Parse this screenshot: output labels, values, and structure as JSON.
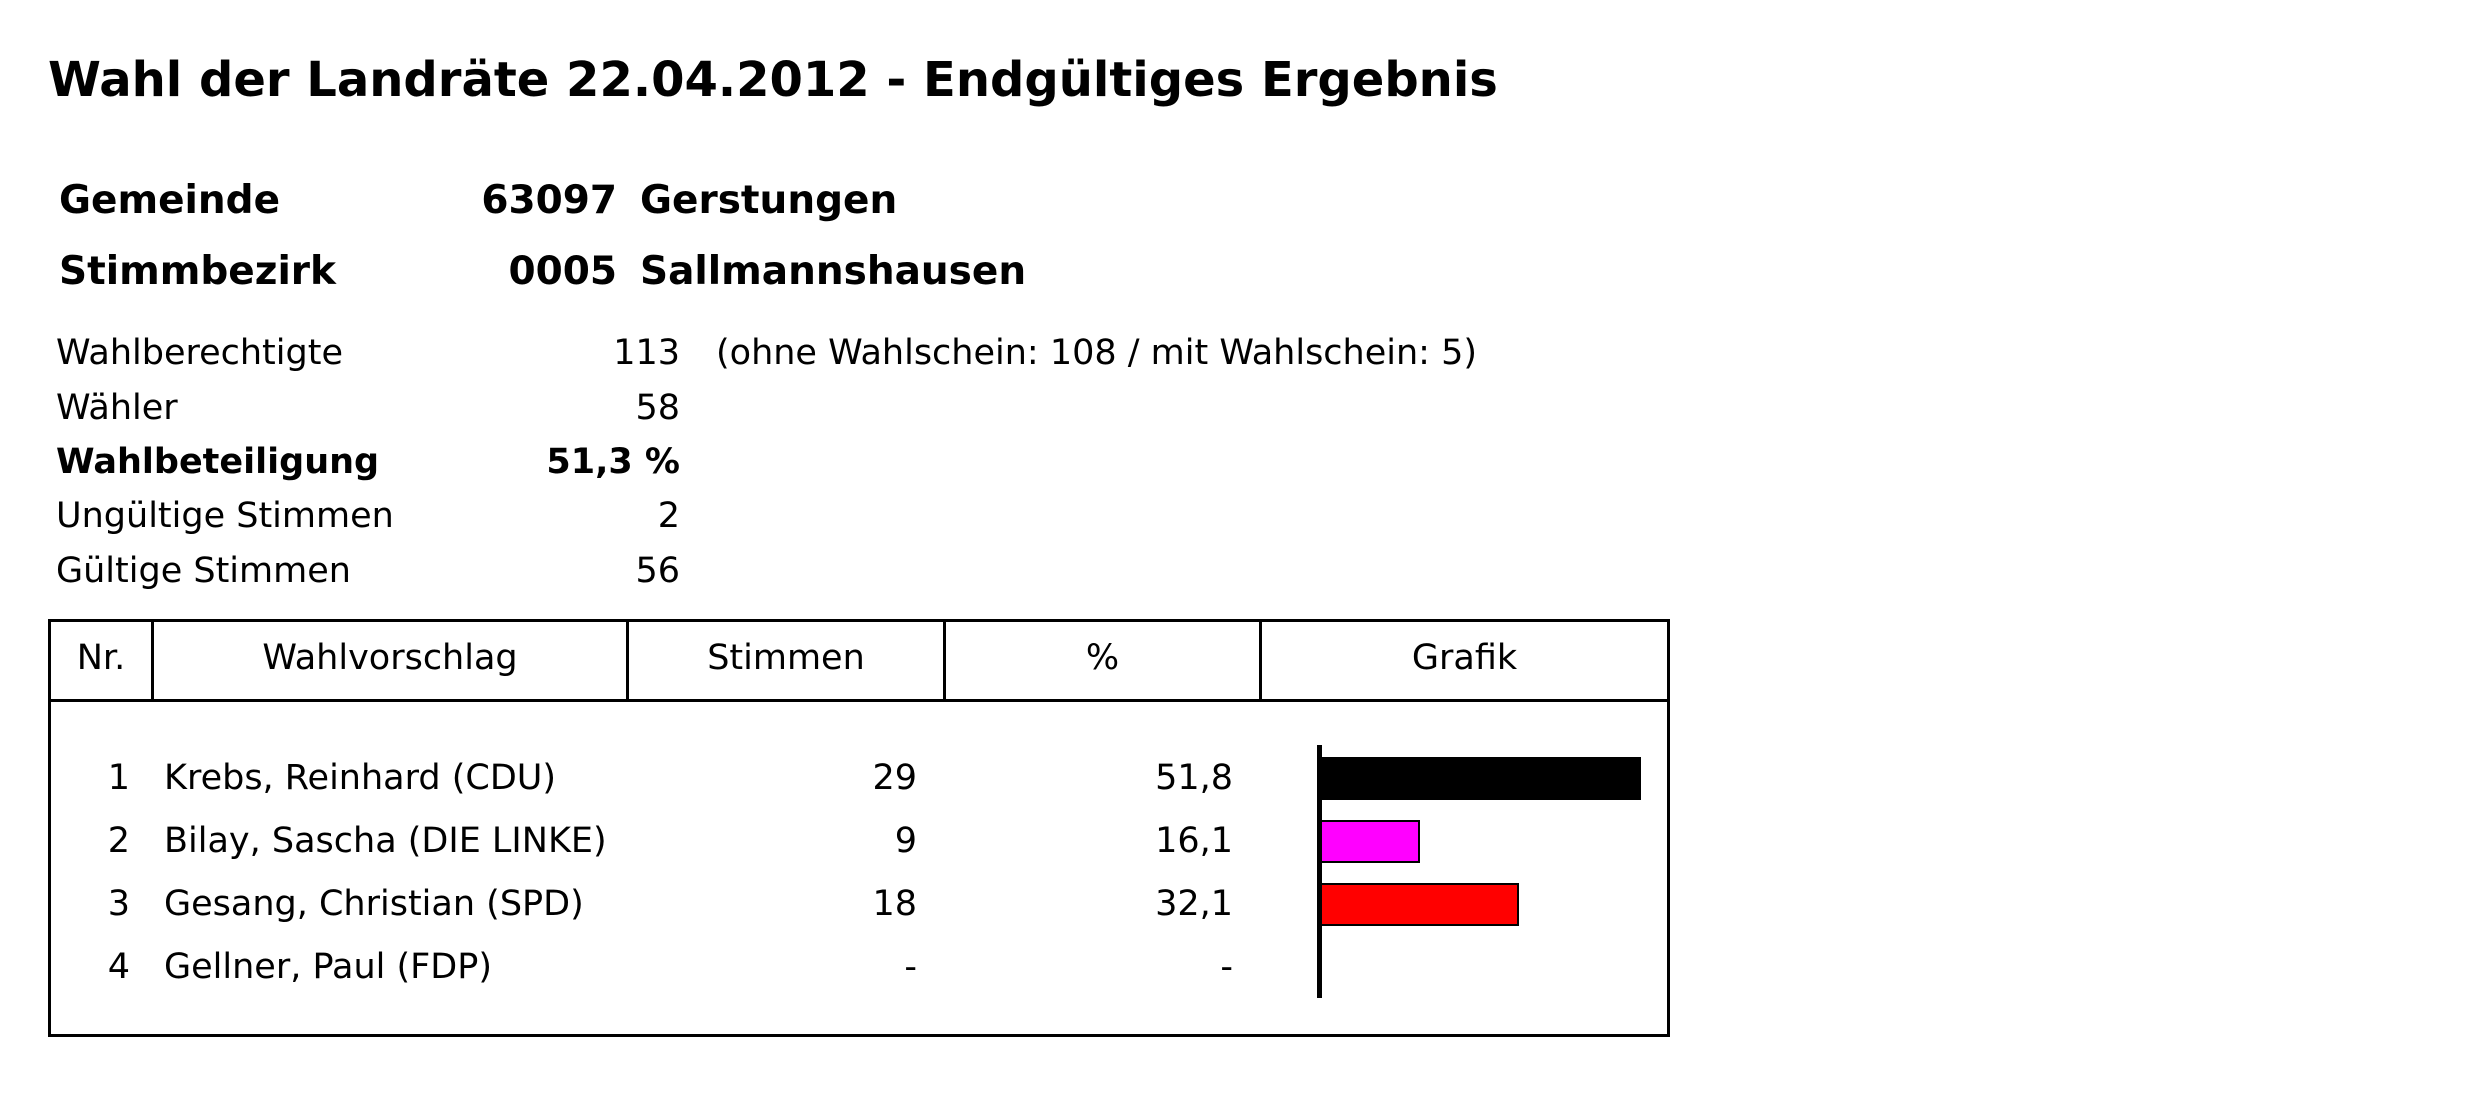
{
  "title": "Wahl der Landräte 22.04.2012 - Endgültiges Ergebnis",
  "location": {
    "gemeinde_label": "Gemeinde",
    "gemeinde_code": "63097",
    "gemeinde_name": "Gerstungen",
    "stimmbezirk_label": "Stimmbezirk",
    "stimmbezirk_code": "0005",
    "stimmbezirk_name": "Sallmannshausen"
  },
  "stats": {
    "wahlberechtigte_label": "Wahlberechtigte",
    "wahlberechtigte_value": "113",
    "wahlberechtigte_note": "(ohne Wahlschein: 108 / mit Wahlschein: 5)",
    "waehler_label": "Wähler",
    "waehler_value": "58",
    "beteiligung_label": "Wahlbeteiligung",
    "beteiligung_value": "51,3 %",
    "ungueltig_label": "Ungültige Stimmen",
    "ungueltig_value": "2",
    "gueltig_label": "Gültige Stimmen",
    "gueltig_value": "56"
  },
  "table": {
    "headers": [
      "Nr.",
      "Wahlvorschlag",
      "Stimmen",
      "%",
      "Grafik"
    ],
    "rows": [
      {
        "nr": "1",
        "name": "Krebs, Reinhard (CDU)",
        "votes": "29",
        "pct": "51,8",
        "share": 51.8,
        "color": "#000000"
      },
      {
        "nr": "2",
        "name": "Bilay, Sascha (DIE LINKE)",
        "votes": "9",
        "pct": "16,1",
        "share": 16.1,
        "color": "#ff00ff"
      },
      {
        "nr": "3",
        "name": "Gesang, Christian (SPD)",
        "votes": "18",
        "pct": "32,1",
        "share": 32.1,
        "color": "#ff0000"
      },
      {
        "nr": "4",
        "name": "Gellner, Paul (FDP)",
        "votes": "-",
        "pct": "-",
        "share": 0,
        "color": "#000000"
      }
    ]
  }
}
